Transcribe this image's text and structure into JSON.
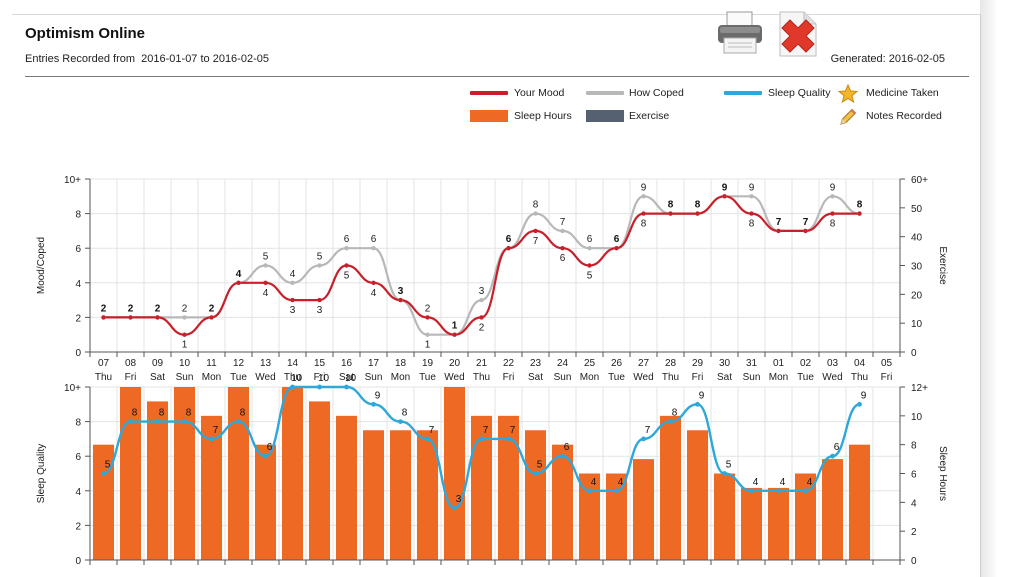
{
  "header": {
    "title": "Optimism Online",
    "range_label": "Entries Recorded from  2016-01-07 to 2016-02-05",
    "generated": "Generated: 2016-02-05"
  },
  "toolbar": {
    "print_icon": "printer-icon",
    "delete_icon": "delete-document-icon"
  },
  "legend": {
    "your_mood": "Your Mood",
    "how_coped": "How Coped",
    "sleep_quality": "Sleep Quality",
    "medicine_taken": "Medicine Taken",
    "sleep_hours": "Sleep Hours",
    "exercise": "Exercise",
    "notes_recorded": "Notes Recorded"
  },
  "colors": {
    "mood": "#c8202a",
    "coped": "#b8b8b8",
    "sleep_quality": "#2ea7d9",
    "sleep_hours": "#ee6a24",
    "exercise": "#556070",
    "grid": "#e3e3e3",
    "axis": "#555555"
  },
  "chart_data": [
    {
      "type": "line",
      "x": [
        "07",
        "08",
        "09",
        "10",
        "11",
        "12",
        "13",
        "14",
        "15",
        "16",
        "17",
        "18",
        "19",
        "20",
        "21",
        "22",
        "23",
        "24",
        "25",
        "26",
        "27",
        "28",
        "29",
        "30",
        "31",
        "01",
        "02",
        "03",
        "04",
        "05"
      ],
      "weekday": [
        "Thu",
        "Fri",
        "Sat",
        "Sun",
        "Mon",
        "Tue",
        "Wed",
        "Thu",
        "Fri",
        "Sat",
        "Sun",
        "Mon",
        "Tue",
        "Wed",
        "Thu",
        "Fri",
        "Sat",
        "Sun",
        "Mon",
        "Tue",
        "Wed",
        "Thu",
        "Fri",
        "Sat",
        "Sun",
        "Mon",
        "Tue",
        "Wed",
        "Thu",
        "Fri"
      ],
      "series": [
        {
          "name": "Your Mood",
          "values": [
            2,
            2,
            2,
            1,
            2,
            4,
            4,
            3,
            3,
            5,
            4,
            3,
            2,
            1,
            2,
            6,
            7,
            6,
            5,
            6,
            8,
            8,
            8,
            9,
            8,
            7,
            7,
            8,
            8,
            null
          ]
        },
        {
          "name": "How Coped",
          "values": [
            2,
            2,
            2,
            2,
            2,
            4,
            5,
            4,
            5,
            6,
            6,
            3,
            1,
            1,
            3,
            6,
            8,
            7,
            6,
            6,
            9,
            8,
            8,
            9,
            9,
            7,
            7,
            9,
            8,
            null
          ]
        }
      ],
      "ylabel": "Mood/Coped",
      "ylabel_right": "Exercise",
      "y_ticks": [
        "0",
        "2",
        "4",
        "6",
        "8",
        "10+"
      ],
      "y_right_ticks": [
        "0",
        "10",
        "20",
        "30",
        "40",
        "50",
        "60+"
      ],
      "ylim": [
        0,
        10
      ],
      "y_right_lim": [
        0,
        60
      ],
      "grid": true
    },
    {
      "type": "bar",
      "x": [
        "07",
        "08",
        "09",
        "10",
        "11",
        "12",
        "13",
        "14",
        "15",
        "16",
        "17",
        "18",
        "19",
        "20",
        "21",
        "22",
        "23",
        "24",
        "25",
        "26",
        "27",
        "28",
        "29",
        "30",
        "31",
        "01",
        "02",
        "03",
        "04",
        "05"
      ],
      "series": [
        {
          "name": "Sleep Hours",
          "values": [
            8,
            12,
            11,
            12,
            10,
            12,
            8,
            12,
            11,
            10,
            9,
            9,
            9,
            12,
            10,
            10,
            9,
            8,
            6,
            6,
            7,
            10,
            9,
            6,
            5,
            5,
            6,
            7,
            8,
            null
          ]
        },
        {
          "name": "Sleep Quality",
          "values": [
            5,
            8,
            8,
            8,
            7,
            8,
            6,
            10,
            10,
            10,
            9,
            8,
            7,
            3,
            7,
            7,
            5,
            6,
            4,
            4,
            7,
            8,
            9,
            5,
            4,
            4,
            4,
            6,
            9,
            null
          ]
        }
      ],
      "ylabel": "Sleep Quality",
      "ylabel_right": "Sleep Hours",
      "y_ticks": [
        "0",
        "2",
        "4",
        "6",
        "8",
        "10+"
      ],
      "y_right_ticks": [
        "0",
        "2",
        "4",
        "6",
        "8",
        "10",
        "12+"
      ],
      "ylim": [
        0,
        10
      ],
      "y_right_lim": [
        0,
        12
      ],
      "grid": true
    }
  ]
}
